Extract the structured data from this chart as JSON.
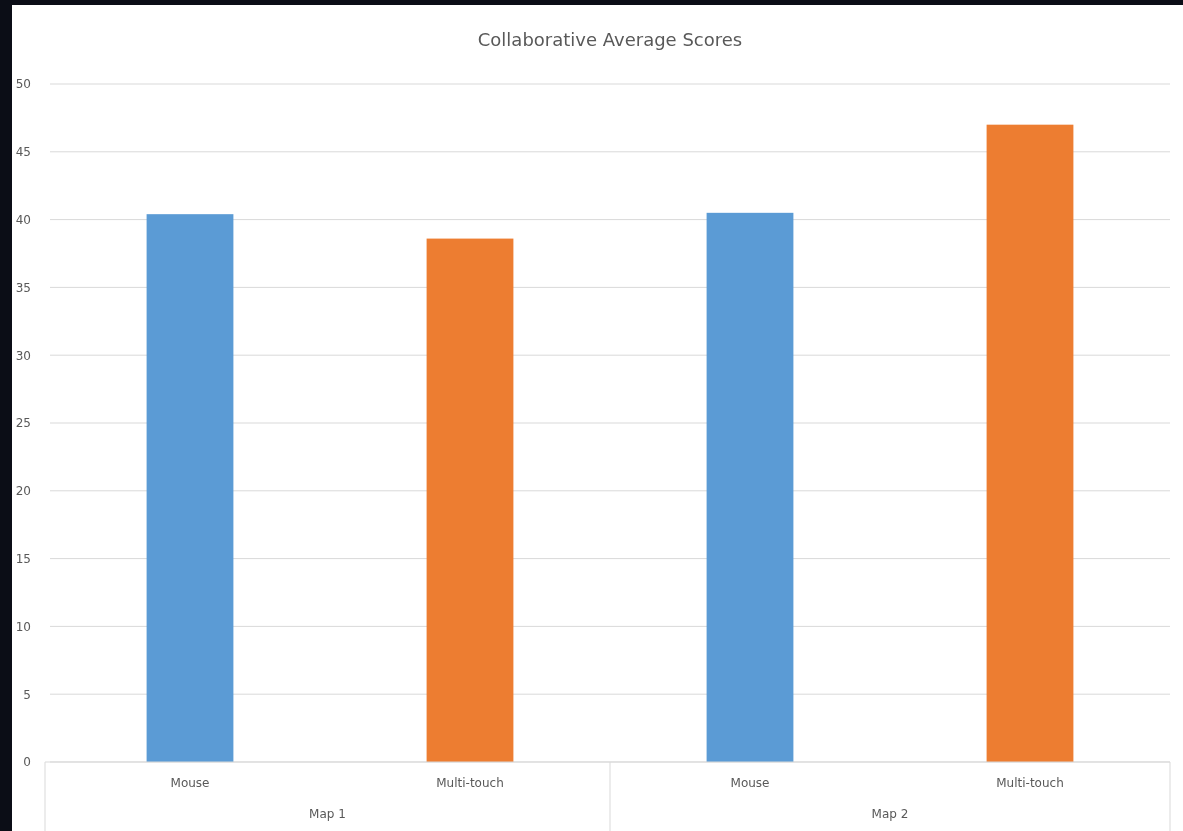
{
  "chart_data": {
    "type": "bar",
    "title": "Collaborative Average Scores",
    "categories": [
      "Mouse",
      "Multi-touch",
      "Mouse",
      "Multi-touch"
    ],
    "values": [
      40.4,
      38.6,
      40.5,
      47.0
    ],
    "colors": [
      "#5b9bd5",
      "#ed7d31",
      "#5b9bd5",
      "#ed7d31"
    ],
    "ylim": [
      0,
      50
    ],
    "yticks": [
      0,
      5,
      10,
      15,
      20,
      25,
      30,
      35,
      40,
      45,
      50
    ],
    "grid": "y",
    "annotations": [
      "Map 1",
      "Map 2"
    ]
  }
}
